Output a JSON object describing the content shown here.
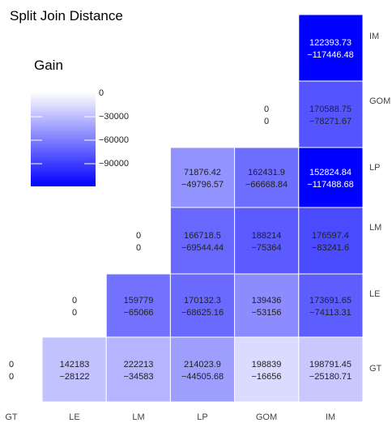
{
  "chart_data": {
    "type": "heatmap",
    "title": "Split Join Distance",
    "legend": {
      "title": "Gain",
      "placement": "top-left",
      "ticks": [
        "0",
        "−30000",
        "−60000",
        "−90000"
      ],
      "color_low": "#ffffff",
      "color_high": "#0000ff"
    },
    "x_categories": [
      "GT",
      "LE",
      "LM",
      "LP",
      "GOM",
      "IM"
    ],
    "y_categories": [
      "GT",
      "LE",
      "LM",
      "LP",
      "GOM",
      "IM"
    ],
    "cells": [
      {
        "x": "GT",
        "y": "GT",
        "top": "0",
        "bottom": "0",
        "gain": null
      },
      {
        "x": "LE",
        "y": "GT",
        "top": "142183",
        "bottom": "−28122",
        "gain": -28122
      },
      {
        "x": "LM",
        "y": "GT",
        "top": "222213",
        "bottom": "−34583",
        "gain": -34583
      },
      {
        "x": "LP",
        "y": "GT",
        "top": "214023.9",
        "bottom": "−44505.68",
        "gain": -44505.68
      },
      {
        "x": "GOM",
        "y": "GT",
        "top": "198839",
        "bottom": "−16656",
        "gain": -16656
      },
      {
        "x": "IM",
        "y": "GT",
        "top": "198791.45",
        "bottom": "−25180.71",
        "gain": -25180.71
      },
      {
        "x": "LE",
        "y": "LE",
        "top": "0",
        "bottom": "0",
        "gain": null
      },
      {
        "x": "LM",
        "y": "LE",
        "top": "159779",
        "bottom": "−65066",
        "gain": -65066
      },
      {
        "x": "LP",
        "y": "LE",
        "top": "170132.3",
        "bottom": "−68625.16",
        "gain": -68625.16
      },
      {
        "x": "GOM",
        "y": "LE",
        "top": "139436",
        "bottom": "−53156",
        "gain": -53156
      },
      {
        "x": "IM",
        "y": "LE",
        "top": "173691.65",
        "bottom": "−74113.31",
        "gain": -74113.31
      },
      {
        "x": "LM",
        "y": "LM",
        "top": "0",
        "bottom": "0",
        "gain": null
      },
      {
        "x": "LP",
        "y": "LM",
        "top": "166718.5",
        "bottom": "−69544.44",
        "gain": -69544.44
      },
      {
        "x": "GOM",
        "y": "LM",
        "top": "188214",
        "bottom": "−75364",
        "gain": -75364
      },
      {
        "x": "IM",
        "y": "LM",
        "top": "176597.4",
        "bottom": "−83241.6",
        "gain": -83241.6
      },
      {
        "x": "LP",
        "y": "LP",
        "top": "71876.42",
        "bottom": "−49796.57",
        "gain": -49796.57
      },
      {
        "x": "GOM",
        "y": "LP",
        "top": "162431.9",
        "bottom": "−66668.84",
        "gain": -66668.84
      },
      {
        "x": "IM",
        "y": "LP",
        "top": "152824.84",
        "bottom": "−117488.68",
        "gain": -117488.68
      },
      {
        "x": "GOM",
        "y": "GOM",
        "top": "0",
        "bottom": "0",
        "gain": null
      },
      {
        "x": "IM",
        "y": "GOM",
        "top": "170588.75",
        "bottom": "−78271.67",
        "gain": -78271.67
      },
      {
        "x": "IM",
        "y": "IM",
        "top": "122393.73",
        "bottom": "−117446.48",
        "gain": -117446.48
      }
    ]
  }
}
